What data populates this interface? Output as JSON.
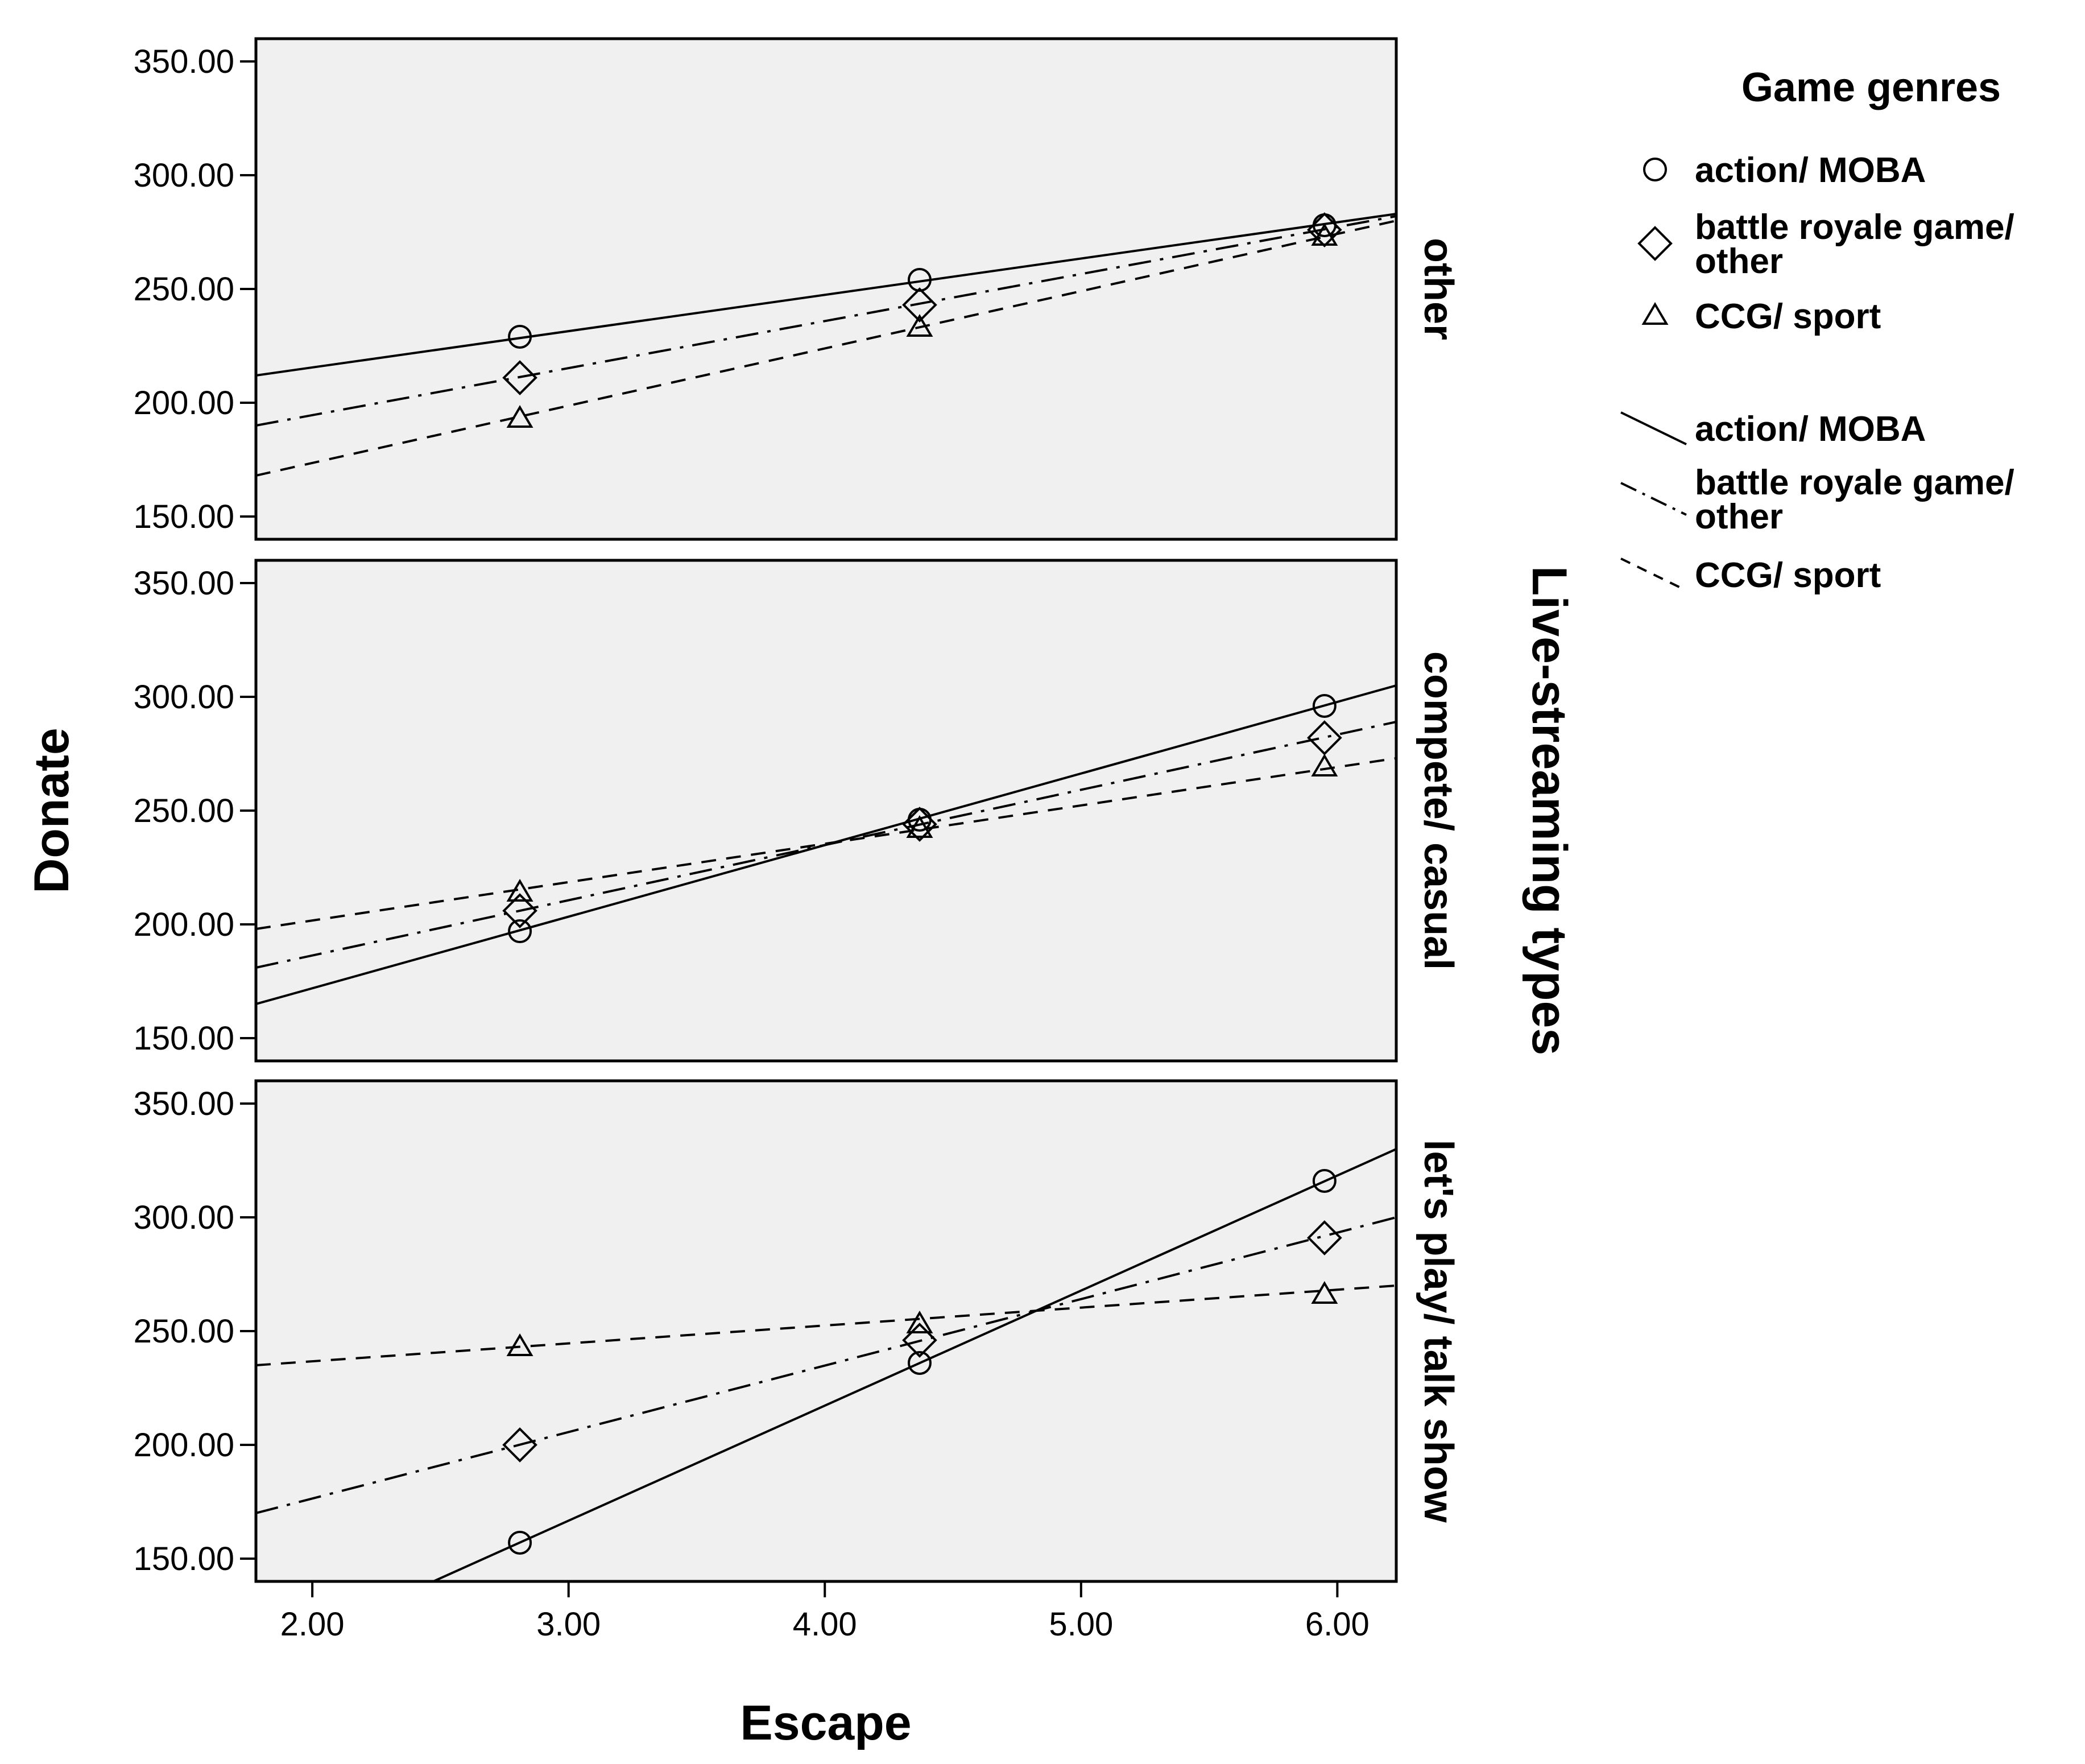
{
  "chart_data": {
    "type": "scatter",
    "xlabel": "Escape",
    "ylabel": "Donate",
    "facet_title": "Live-streaming types",
    "xlim": [
      1.78,
      6.23
    ],
    "ylim": [
      140,
      360
    ],
    "x_ticks": [
      "2.00",
      "3.00",
      "4.00",
      "5.00",
      "6.00"
    ],
    "y_ticks": [
      "150.00",
      "200.00",
      "250.00",
      "300.00",
      "350.00"
    ],
    "grid": false,
    "legend_position": "right",
    "legend": {
      "title": "Game genres",
      "markers": [
        {
          "label_lines": [
            "action/ MOBA"
          ],
          "marker": "circle"
        },
        {
          "label_lines": [
            "battle royale game/",
            "other"
          ],
          "marker": "diamond"
        },
        {
          "label_lines": [
            "CCG/ sport"
          ],
          "marker": "triangle"
        }
      ],
      "lines": [
        {
          "label_lines": [
            "action/ MOBA"
          ],
          "dash": "solid"
        },
        {
          "label_lines": [
            "battle royale game/",
            "other"
          ],
          "dash": "dashdot"
        },
        {
          "label_lines": [
            "CCG/ sport"
          ],
          "dash": "dashed"
        }
      ]
    },
    "panels": [
      {
        "label": "other",
        "series": [
          {
            "name": "action/ MOBA",
            "marker": "circle",
            "dash": "solid",
            "points": [
              [
                2.81,
                229
              ],
              [
                4.37,
                254
              ],
              [
                5.95,
                278
              ]
            ],
            "fit": [
              [
                1.78,
                212
              ],
              [
                6.23,
                283
              ]
            ]
          },
          {
            "name": "battle royale game/ other",
            "marker": "diamond",
            "dash": "dashdot",
            "points": [
              [
                2.81,
                211
              ],
              [
                4.37,
                243
              ],
              [
                5.95,
                276
              ]
            ],
            "fit": [
              [
                1.78,
                190
              ],
              [
                6.23,
                282
              ]
            ]
          },
          {
            "name": "CCG/ sport",
            "marker": "triangle",
            "dash": "dashed",
            "points": [
              [
                2.81,
                193
              ],
              [
                4.37,
                233
              ],
              [
                5.95,
                273
              ]
            ],
            "fit": [
              [
                1.78,
                168
              ],
              [
                6.23,
                280
              ]
            ]
          }
        ]
      },
      {
        "label": "compete/ casual",
        "series": [
          {
            "name": "action/ MOBA",
            "marker": "circle",
            "dash": "solid",
            "points": [
              [
                2.81,
                197
              ],
              [
                4.37,
                246
              ],
              [
                5.95,
                296
              ]
            ],
            "fit": [
              [
                1.78,
                165
              ],
              [
                6.23,
                305
              ]
            ]
          },
          {
            "name": "battle royale game/ other",
            "marker": "diamond",
            "dash": "dashdot",
            "points": [
              [
                2.81,
                206
              ],
              [
                4.37,
                244
              ],
              [
                5.95,
                282
              ]
            ],
            "fit": [
              [
                1.78,
                181
              ],
              [
                6.23,
                289
              ]
            ]
          },
          {
            "name": "CCG/ sport",
            "marker": "triangle",
            "dash": "dashed",
            "points": [
              [
                2.81,
                214
              ],
              [
                4.37,
                242
              ],
              [
                5.95,
                269
              ]
            ],
            "fit": [
              [
                1.78,
                198
              ],
              [
                6.23,
                273
              ]
            ]
          }
        ]
      },
      {
        "label": "let's play/ talk show",
        "series": [
          {
            "name": "action/ MOBA",
            "marker": "circle",
            "dash": "solid",
            "points": [
              [
                2.81,
                157
              ],
              [
                4.37,
                236
              ],
              [
                5.95,
                316
              ]
            ],
            "fit": [
              [
                1.78,
                105
              ],
              [
                6.23,
                330
              ]
            ]
          },
          {
            "name": "battle royale game/ other",
            "marker": "diamond",
            "dash": "dashdot",
            "points": [
              [
                2.81,
                200
              ],
              [
                4.37,
                246
              ],
              [
                5.95,
                291
              ]
            ],
            "fit": [
              [
                1.78,
                170
              ],
              [
                6.23,
                300
              ]
            ]
          },
          {
            "name": "CCG/ sport",
            "marker": "triangle",
            "dash": "dashed",
            "points": [
              [
                2.81,
                243
              ],
              [
                4.37,
                253
              ],
              [
                5.95,
                266
              ]
            ],
            "fit": [
              [
                1.78,
                235
              ],
              [
                6.23,
                270
              ]
            ]
          }
        ]
      }
    ]
  }
}
